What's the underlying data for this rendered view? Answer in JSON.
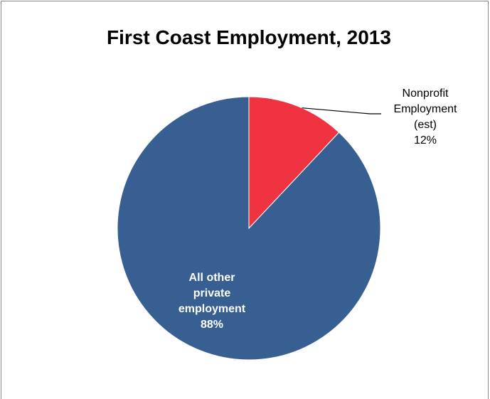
{
  "chart_data": {
    "type": "pie",
    "title": "First Coast Employment, 2013",
    "slices": [
      {
        "label_lines": [
          "Nonprofit",
          "Employment",
          "(est)"
        ],
        "percent_label": "12%",
        "value": 12,
        "color": "#ef3340",
        "label_style": "outside-leader"
      },
      {
        "label_lines": [
          "All other",
          "private",
          "employment"
        ],
        "percent_label": "88%",
        "value": 88,
        "color": "#375f91",
        "label_style": "inside"
      }
    ],
    "start_angle_deg": 0,
    "direction": "clockwise",
    "legend": "none",
    "border_color": "#868686"
  }
}
